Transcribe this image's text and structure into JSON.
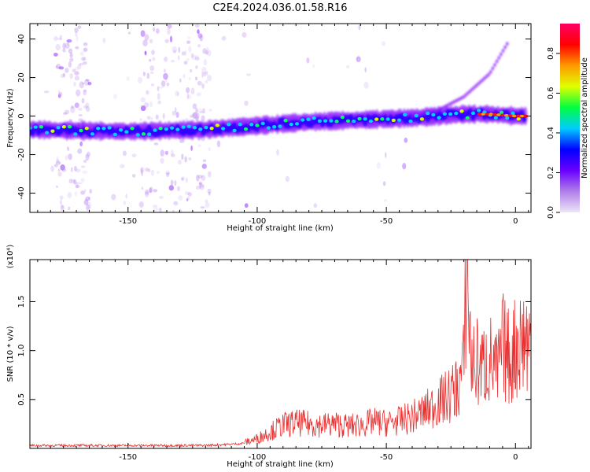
{
  "figure": {
    "title": "C2E4.2024.036.01.58.R16"
  },
  "chart_data": [
    {
      "type": "heatmap",
      "xlabel": "Height of straight line (km)",
      "ylabel": "Frequency (Hz)",
      "xlim": [
        -188,
        6
      ],
      "ylim": [
        -50,
        48
      ],
      "xticks": [
        -150,
        -100,
        -50,
        0
      ],
      "xtick_labels": [
        "-150",
        "-100",
        "-50",
        "0"
      ],
      "yticks": [
        -40,
        -20,
        0,
        20,
        40
      ],
      "ytick_labels": [
        "-40",
        "-20",
        "0",
        "20",
        "40"
      ],
      "colorbar": {
        "label": "Normalized spectral amplitude",
        "range": [
          0,
          0.95
        ],
        "ticks": [
          0.0,
          0.2,
          0.4,
          0.6,
          0.8
        ],
        "tick_labels": [
          "0.0",
          "0.2",
          "0.4",
          "0.6",
          "0.8"
        ],
        "colormap": [
          "#ede6f7",
          "#b07fe8",
          "#6a00ff",
          "#0000ff",
          "#00ccff",
          "#00ff40",
          "#e0ff00",
          "#ff9900",
          "#ff0000",
          "#ff0066"
        ]
      },
      "band_centerline": {
        "x": [
          -188,
          -150,
          -120,
          -100,
          -80,
          -60,
          -40,
          -20,
          -10,
          0,
          5
        ],
        "y": [
          -7,
          -8,
          -7,
          -5,
          -3,
          -2,
          -1,
          1,
          1,
          0,
          0
        ]
      },
      "rising_branch": {
        "x": [
          -40,
          -30,
          -20,
          -10,
          -3
        ],
        "y": [
          0,
          3,
          10,
          22,
          38
        ]
      }
    },
    {
      "type": "line",
      "xlabel": "Height of straight line (km)",
      "ylabel": "SNR (10 * v/v)",
      "y_multiplier": "(x10⁴)",
      "xlim": [
        -188,
        6
      ],
      "ylim": [
        0,
        1.93
      ],
      "xticks": [
        -150,
        -100,
        -50,
        0
      ],
      "xtick_labels": [
        "-150",
        "-100",
        "-50",
        "0"
      ],
      "yticks": [
        0.5,
        1.0,
        1.5
      ],
      "ytick_labels": [
        "0.5",
        "1.0",
        "1.5"
      ],
      "series": [
        {
          "color": "#e83030",
          "x": [
            -188,
            -180,
            -170,
            -160,
            -150,
            -140,
            -130,
            -120,
            -112,
            -106,
            -100,
            -95,
            -90,
            -85,
            -80,
            -75,
            -70,
            -65,
            -60,
            -55,
            -50,
            -45,
            -40,
            -35,
            -31,
            -28,
            -25,
            -22,
            -20,
            -19,
            -17,
            -15,
            -13,
            -10,
            -7,
            -5,
            -2,
            0,
            3,
            6
          ],
          "y": [
            0.03,
            0.03,
            0.03,
            0.03,
            0.03,
            0.03,
            0.03,
            0.03,
            0.04,
            0.05,
            0.1,
            0.17,
            0.24,
            0.26,
            0.25,
            0.24,
            0.25,
            0.23,
            0.24,
            0.27,
            0.26,
            0.28,
            0.32,
            0.38,
            0.45,
            0.5,
            0.55,
            0.65,
            0.85,
            1.9,
            0.85,
            0.88,
            0.82,
            0.92,
            0.75,
            1.05,
            0.9,
            1.05,
            1.12,
            1.08
          ]
        }
      ]
    }
  ]
}
